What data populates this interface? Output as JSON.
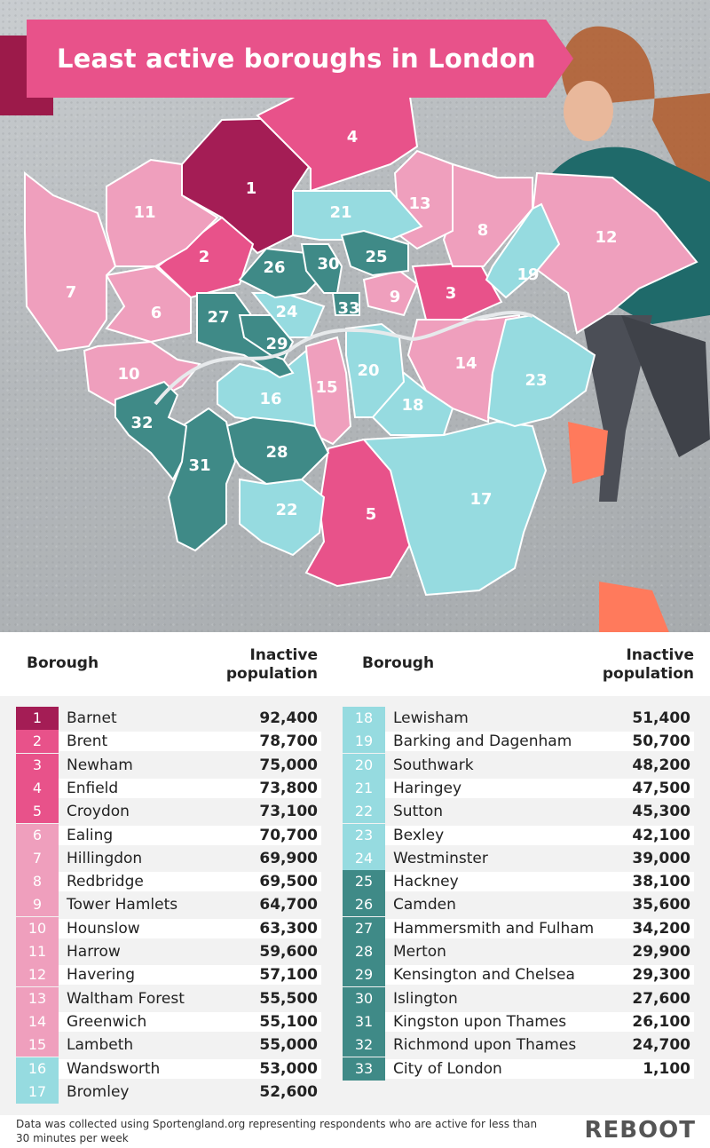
{
  "title": "Least active boroughs in London",
  "colors": {
    "dark": "#a41d55",
    "pink": "#e8528a",
    "light": "#ef9fbd",
    "cyan": "#96dbe0",
    "teal": "#3f8a87"
  },
  "table": {
    "col_borough": "Borough",
    "col_inactive": "Inactive population",
    "rows": [
      {
        "rank": "1",
        "borough": "Barnet",
        "value": "92,400",
        "tier": "dark"
      },
      {
        "rank": "2",
        "borough": "Brent",
        "value": "78,700",
        "tier": "pink"
      },
      {
        "rank": "3",
        "borough": "Newham",
        "value": "75,000",
        "tier": "pink"
      },
      {
        "rank": "4",
        "borough": "Enfield",
        "value": "73,800",
        "tier": "pink"
      },
      {
        "rank": "5",
        "borough": "Croydon",
        "value": "73,100",
        "tier": "pink"
      },
      {
        "rank": "6",
        "borough": "Ealing",
        "value": "70,700",
        "tier": "light"
      },
      {
        "rank": "7",
        "borough": "Hillingdon",
        "value": "69,900",
        "tier": "light"
      },
      {
        "rank": "8",
        "borough": "Redbridge",
        "value": "69,500",
        "tier": "light"
      },
      {
        "rank": "9",
        "borough": "Tower Hamlets",
        "value": "64,700",
        "tier": "light"
      },
      {
        "rank": "10",
        "borough": "Hounslow",
        "value": "63,300",
        "tier": "light"
      },
      {
        "rank": "11",
        "borough": "Harrow",
        "value": "59,600",
        "tier": "light"
      },
      {
        "rank": "12",
        "borough": "Havering",
        "value": "57,100",
        "tier": "light"
      },
      {
        "rank": "13",
        "borough": "Waltham Forest",
        "value": "55,500",
        "tier": "light"
      },
      {
        "rank": "14",
        "borough": "Greenwich",
        "value": "55,100",
        "tier": "light"
      },
      {
        "rank": "15",
        "borough": "Lambeth",
        "value": "55,000",
        "tier": "light"
      },
      {
        "rank": "16",
        "borough": "Wandsworth",
        "value": "53,000",
        "tier": "cyan"
      },
      {
        "rank": "17",
        "borough": "Bromley",
        "value": "52,600",
        "tier": "cyan"
      },
      {
        "rank": "18",
        "borough": "Lewisham",
        "value": "51,400",
        "tier": "cyan"
      },
      {
        "rank": "19",
        "borough": "Barking and Dagenham",
        "value": "50,700",
        "tier": "cyan"
      },
      {
        "rank": "20",
        "borough": "Southwark",
        "value": "48,200",
        "tier": "cyan"
      },
      {
        "rank": "21",
        "borough": "Haringey",
        "value": "47,500",
        "tier": "cyan"
      },
      {
        "rank": "22",
        "borough": "Sutton",
        "value": "45,300",
        "tier": "cyan"
      },
      {
        "rank": "23",
        "borough": "Bexley",
        "value": "42,100",
        "tier": "cyan"
      },
      {
        "rank": "24",
        "borough": "Westminster",
        "value": "39,000",
        "tier": "cyan"
      },
      {
        "rank": "25",
        "borough": "Hackney",
        "value": "38,100",
        "tier": "teal"
      },
      {
        "rank": "26",
        "borough": "Camden",
        "value": "35,600",
        "tier": "teal"
      },
      {
        "rank": "27",
        "borough": "Hammersmith and Fulham",
        "value": "34,200",
        "tier": "teal"
      },
      {
        "rank": "28",
        "borough": "Merton",
        "value": "29,900",
        "tier": "teal"
      },
      {
        "rank": "29",
        "borough": "Kensington and Chelsea",
        "value": "29,300",
        "tier": "teal"
      },
      {
        "rank": "30",
        "borough": "Islington",
        "value": "27,600",
        "tier": "teal"
      },
      {
        "rank": "31",
        "borough": "Kingston upon Thames",
        "value": "26,100",
        "tier": "teal"
      },
      {
        "rank": "32",
        "borough": "Richmond upon Thames",
        "value": "24,700",
        "tier": "teal"
      },
      {
        "rank": "33",
        "borough": "City of London",
        "value": "1,100",
        "tier": "teal"
      }
    ]
  },
  "footnote": "Data was collected using Sportengland.org representing respondents who are active for less than 30 minutes per week",
  "logo": "REBOOT"
}
